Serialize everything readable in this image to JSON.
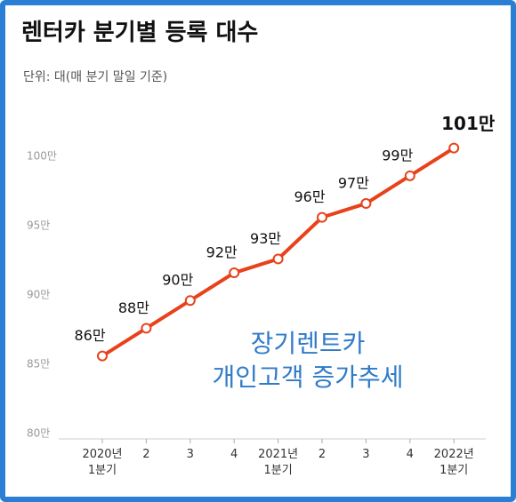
{
  "chart_data": {
    "type": "line",
    "title": "렌터카 분기별 등록 대수",
    "subtitle": "단위: 대(매 분기 말일 기준)",
    "annotation": [
      "장기렌트카",
      "개인고객 증가추세"
    ],
    "categories": [
      "2020년\n1분기",
      "2",
      "3",
      "4",
      "2021년\n1분기",
      "2",
      "3",
      "4",
      "2022년\n1분기"
    ],
    "series": [
      {
        "color": "#e8421b",
        "values": [
          85.6,
          87.6,
          89.6,
          91.6,
          92.6,
          95.6,
          96.6,
          98.6,
          100.6
        ],
        "value_labels": [
          "86만",
          "88만",
          "90만",
          "92만",
          "93만",
          "96만",
          "97만",
          "99만",
          "101만"
        ]
      }
    ],
    "ylim": [
      80,
      102.5
    ],
    "yticks": [
      {
        "value": 80,
        "label": "80만"
      },
      {
        "value": 85,
        "label": "85만"
      },
      {
        "value": 90,
        "label": "90만"
      },
      {
        "value": 95,
        "label": "95만"
      },
      {
        "value": 100,
        "label": "100만"
      }
    ],
    "grid": false
  }
}
